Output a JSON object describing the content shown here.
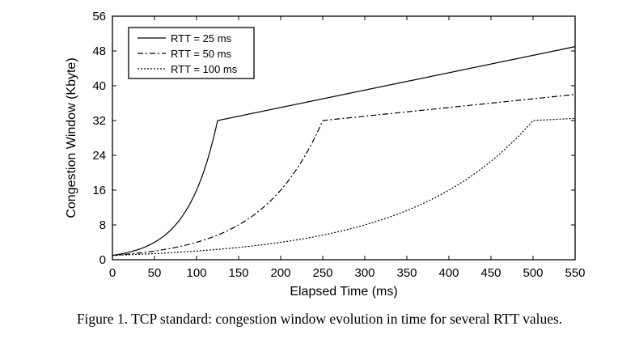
{
  "chart_data": {
    "type": "line",
    "xlabel": "Elapsed Time (ms)",
    "ylabel": "Congestion Window (Kbyte)",
    "xlim": [
      0,
      550
    ],
    "ylim": [
      0,
      56
    ],
    "xticks": [
      0,
      50,
      100,
      150,
      200,
      250,
      300,
      350,
      400,
      450,
      500,
      550
    ],
    "yticks": [
      0,
      8,
      16,
      24,
      32,
      40,
      48,
      56
    ],
    "grid": false,
    "legend_position": "top-left",
    "series": [
      {
        "name": "RTT = 25 ms",
        "style": "solid",
        "x": [
          0,
          25,
          50,
          75,
          100,
          125,
          550
        ],
        "y": [
          1,
          2,
          4,
          8,
          16,
          32,
          49
        ]
      },
      {
        "name": "RTT = 50 ms",
        "style": "dashdot",
        "x": [
          0,
          50,
          100,
          150,
          200,
          250,
          550
        ],
        "y": [
          1,
          2,
          4,
          8,
          16,
          32,
          38
        ]
      },
      {
        "name": "RTT = 100 ms",
        "style": "dotted",
        "x": [
          0,
          100,
          200,
          300,
          400,
          500,
          550
        ],
        "y": [
          1,
          2,
          4,
          8,
          16,
          32,
          32.5
        ]
      }
    ]
  },
  "caption": "Figure 1. TCP standard: congestion window evolution in time for several RTT values."
}
